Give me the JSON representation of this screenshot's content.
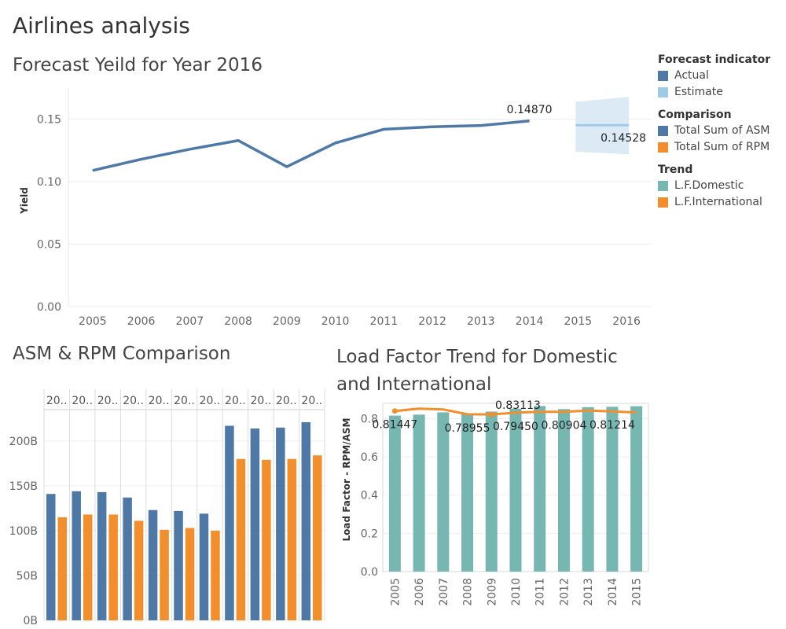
{
  "dashboard_title": "Airlines analysis",
  "colors": {
    "asm": "#4e79a7",
    "rpm": "#f28e2b",
    "domestic": "#76b7b2",
    "estimate": "#a0cbe8",
    "estimate_band": "#dceaf6"
  },
  "legend": [
    {
      "heading": "Forecast indicator",
      "items": [
        {
          "label": "Actual",
          "color": "#4e79a7"
        },
        {
          "label": "Estimate",
          "color": "#a0cbe8"
        }
      ]
    },
    {
      "heading": "Comparison",
      "items": [
        {
          "label": "Total Sum of ASM",
          "color": "#4e79a7"
        },
        {
          "label": "Total Sum of RPM",
          "color": "#f28e2b"
        }
      ]
    },
    {
      "heading": "Trend",
      "items": [
        {
          "label": "L.F.Domestic",
          "color": "#76b7b2"
        },
        {
          "label": "L.F.International",
          "color": "#f28e2b"
        }
      ]
    }
  ],
  "chart_data": [
    {
      "type": "line",
      "title": "Forecast Yeild for Year 2016",
      "ylabel": "Yield",
      "x": [
        "2005",
        "2006",
        "2007",
        "2008",
        "2009",
        "2010",
        "2011",
        "2012",
        "2013",
        "2014",
        "2015",
        "2016"
      ],
      "y_ticks": [
        "0.00",
        "0.05",
        "0.10",
        "0.15"
      ],
      "ylim": [
        0,
        0.175
      ],
      "grid": true,
      "series": [
        {
          "name": "Actual",
          "values": [
            0.109,
            0.118,
            0.126,
            0.133,
            0.112,
            0.131,
            0.142,
            0.144,
            0.145,
            0.1487,
            null,
            null
          ]
        },
        {
          "name": "Estimate",
          "values": [
            null,
            null,
            null,
            null,
            null,
            null,
            null,
            null,
            null,
            null,
            0.14528,
            0.14528
          ]
        }
      ],
      "estimate_band": {
        "x_from": "2015",
        "x_to": "2016",
        "upper_from": 0.164,
        "upper_to": 0.168,
        "lower_from": 0.124,
        "lower_to": 0.122
      },
      "labels": [
        {
          "x": "2014",
          "text": "0.14870"
        },
        {
          "x": "2016",
          "text": "0.14528"
        }
      ]
    },
    {
      "type": "bar",
      "title": "ASM & RPM Comparison",
      "column_headers": [
        "20..",
        "20..",
        "20..",
        "20..",
        "20..",
        "20..",
        "20..",
        "20..",
        "20..",
        "20..",
        "20.."
      ],
      "y_ticks": [
        "0B",
        "50B",
        "100B",
        "150B",
        "200B"
      ],
      "ylim": [
        0,
        235
      ],
      "series": [
        {
          "name": "Total Sum of ASM",
          "values": [
            141,
            144,
            143,
            137,
            123,
            122,
            119,
            217,
            214,
            215,
            221
          ]
        },
        {
          "name": "Total Sum of RPM",
          "values": [
            115,
            118,
            118,
            111,
            101,
            103,
            100,
            180,
            179,
            180,
            184
          ]
        }
      ]
    },
    {
      "type": "bar",
      "title": "Load Factor Trend for Domestic and International",
      "ylabel": "Load Factor - RPM/ASM",
      "categories": [
        "2005",
        "2006",
        "2007",
        "2008",
        "2009",
        "2010",
        "2011",
        "2012",
        "2013",
        "2014",
        "2015"
      ],
      "y_ticks": [
        "0.0",
        "0.2",
        "0.4",
        "0.6",
        "0.8"
      ],
      "ylim": [
        0,
        0.88
      ],
      "series": [
        {
          "name": "L.F.Domestic",
          "values": [
            0.816,
            0.821,
            0.833,
            0.826,
            0.837,
            0.852,
            0.866,
            0.85,
            0.86,
            0.862,
            0.865
          ]
        },
        {
          "name": "L.F.International",
          "values": [
            0.84,
            0.852,
            0.848,
            0.823,
            0.822,
            0.831,
            0.836,
            0.836,
            0.842,
            0.838,
            0.832
          ]
        }
      ],
      "labels": [
        {
          "x": "2005",
          "text": "0.81447",
          "pos": "below"
        },
        {
          "x": "2008",
          "text": "0.78955",
          "pos": "below"
        },
        {
          "x": "2010",
          "text": "0.83113",
          "pos": "above"
        },
        {
          "x": "2010",
          "text": "0.79450",
          "pos": "below"
        },
        {
          "x": "2012",
          "text": "0.80904",
          "pos": "below"
        },
        {
          "x": "2014",
          "text": "0.81214",
          "pos": "below"
        }
      ]
    }
  ]
}
